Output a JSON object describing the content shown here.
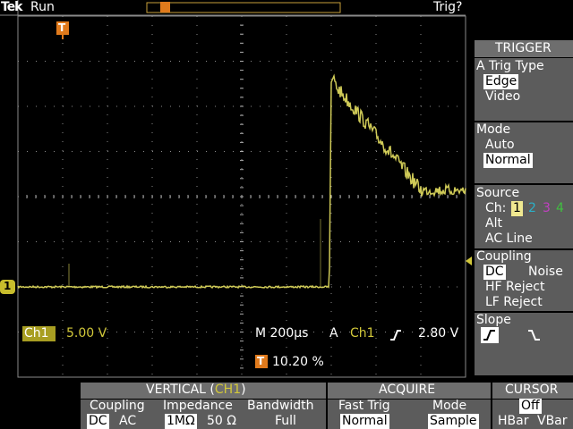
{
  "header": {
    "brand": "Tek",
    "status": "Run",
    "trigger_status": "Trig?",
    "trigger_marker": "T"
  },
  "trigger_menu": {
    "title": "TRIGGER",
    "type": {
      "label": "A Trig Type",
      "options": [
        "Edge",
        "Video"
      ]
    },
    "mode": {
      "label": "Mode",
      "options": [
        "Auto",
        "Normal"
      ]
    },
    "source": {
      "label": "Source",
      "prefix": "Ch:",
      "channels": [
        "1",
        "2",
        "3",
        "4"
      ],
      "options": [
        "Alt",
        "AC Line"
      ]
    },
    "coupling": {
      "label": "Coupling",
      "options": [
        "DC",
        "Noise",
        "HF Reject",
        "LF Reject"
      ]
    },
    "slope": {
      "label": "Slope"
    }
  },
  "readout": {
    "channel": "Ch1",
    "scale": "5.00 V",
    "timebase": "M 200µs",
    "trigger_label": "A",
    "trigger_source": "Ch1",
    "trigger_level": "2.80 V",
    "position_marker": "T",
    "position": "10.20 %",
    "ground_marker": "1"
  },
  "bottom_menu": {
    "vertical": {
      "title": "VERTICAL (",
      "channel": "CH1",
      "title_end": ")",
      "coupling": {
        "label": "Coupling",
        "options": [
          "DC",
          "AC"
        ]
      },
      "impedance": {
        "label": "Impedance",
        "options": [
          "1MΩ",
          "50 Ω"
        ]
      },
      "bandwidth": {
        "label": "Bandwidth",
        "value": "Full"
      }
    },
    "acquire": {
      "title": "ACQUIRE",
      "fast_trig": {
        "label": "Fast Trig",
        "value": "Normal"
      },
      "mode": {
        "label": "Mode",
        "value": "Sample"
      }
    },
    "cursor": {
      "title": "CURSOR",
      "value": "Off",
      "options": [
        "HBar",
        "VBar"
      ]
    }
  }
}
